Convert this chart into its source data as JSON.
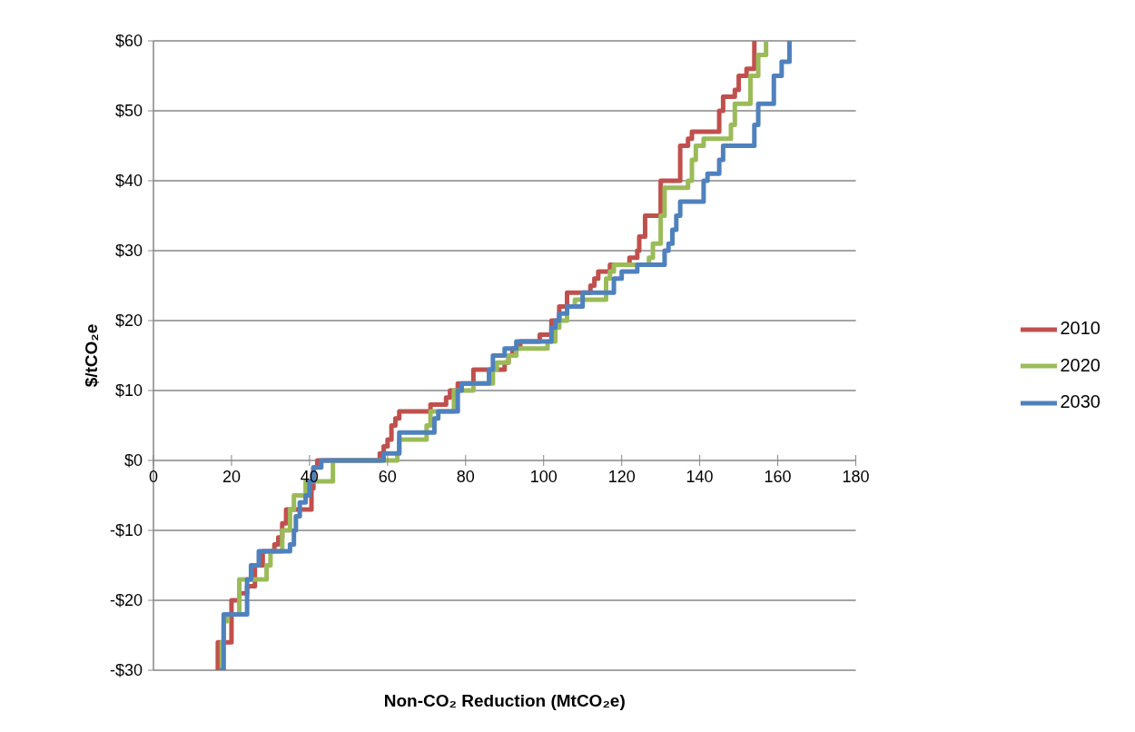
{
  "chart_data": {
    "type": "step",
    "xlabel": "Non-CO₂ Reduction (MtCO₂e)",
    "ylabel": "$/tCO₂e",
    "xlim": [
      0,
      180
    ],
    "xticks": [
      0,
      20,
      40,
      60,
      80,
      100,
      120,
      140,
      160,
      180
    ],
    "ylim": [
      -30,
      60
    ],
    "yticks": [
      {
        "value": -30,
        "label": "-$30"
      },
      {
        "value": -20,
        "label": "-$20"
      },
      {
        "value": -10,
        "label": "-$10"
      },
      {
        "value": 0,
        "label": "$0"
      },
      {
        "value": 10,
        "label": "$10"
      },
      {
        "value": 20,
        "label": "$20"
      },
      {
        "value": 30,
        "label": "$30"
      },
      {
        "value": 40,
        "label": "$40"
      },
      {
        "value": 50,
        "label": "$50"
      },
      {
        "value": 60,
        "label": "$60"
      }
    ],
    "grid": "y",
    "legend": "right",
    "series": [
      {
        "name": "2010",
        "color": "#c0504d",
        "x": [
          16,
          16.5,
          20,
          22,
          24,
          26,
          28,
          31,
          32,
          33,
          34,
          40.5,
          41,
          42,
          58,
          59,
          60,
          61,
          62,
          63,
          71,
          75,
          76,
          78,
          82,
          90,
          91,
          92,
          94,
          99,
          102,
          104,
          106,
          112,
          113,
          114,
          117,
          122,
          124,
          124.5,
          126,
          130,
          135,
          137,
          138,
          145,
          146,
          149,
          150,
          152,
          154
        ],
        "values": [
          -30,
          -26,
          -20,
          -19,
          -18,
          -15,
          -13,
          -12,
          -11,
          -9,
          -7,
          -4,
          -1,
          0,
          1,
          2,
          3,
          5,
          6,
          7,
          8,
          9,
          10,
          11,
          13,
          14,
          15,
          16,
          17,
          18,
          20,
          22,
          24,
          25,
          26,
          27,
          28,
          29,
          30,
          32,
          35,
          40,
          45,
          46,
          47,
          50,
          52,
          53,
          55,
          56,
          60
        ]
      },
      {
        "name": "2020",
        "color": "#9bbb59",
        "x": [
          17,
          17.5,
          18,
          19,
          22,
          29,
          30,
          33,
          35,
          36,
          39,
          46,
          62.5,
          63,
          70,
          71,
          77,
          82,
          87,
          88,
          91,
          93,
          101,
          103,
          104,
          106,
          108,
          116,
          117,
          118,
          127,
          128,
          130,
          131,
          137,
          138,
          139,
          141,
          148,
          149,
          153,
          155,
          157
        ],
        "values": [
          -30,
          -26,
          -23,
          -22,
          -17,
          -15,
          -13,
          -10,
          -7,
          -5,
          -3,
          0,
          1,
          3,
          5,
          7,
          10,
          11,
          13,
          14,
          15,
          16,
          17,
          19,
          20,
          22,
          23,
          26,
          27,
          28,
          29,
          31,
          35,
          39,
          40,
          43,
          45,
          46,
          48,
          51,
          55,
          58,
          60
        ]
      },
      {
        "name": "2030",
        "color": "#4f81bd",
        "x": [
          17,
          18,
          24,
          25,
          27,
          35,
          36,
          36.5,
          37.5,
          39,
          40,
          41,
          43,
          59,
          63,
          72,
          73,
          78,
          79,
          86,
          87,
          90,
          93,
          102,
          103,
          104,
          106,
          110,
          118,
          120,
          124,
          131,
          132,
          133,
          134,
          135,
          141,
          142,
          145,
          146,
          154,
          155,
          159,
          161,
          163
        ],
        "values": [
          -30,
          -22,
          -17,
          -15,
          -13,
          -12,
          -10,
          -8,
          -6,
          -5,
          -3,
          -1,
          0,
          1,
          4,
          6,
          7,
          10,
          11,
          13,
          15,
          16,
          17,
          19,
          20,
          21,
          22,
          24,
          26,
          27,
          28,
          30,
          31,
          33,
          35,
          37,
          40,
          41,
          43,
          45,
          48,
          51,
          55,
          57,
          60
        ]
      }
    ]
  }
}
